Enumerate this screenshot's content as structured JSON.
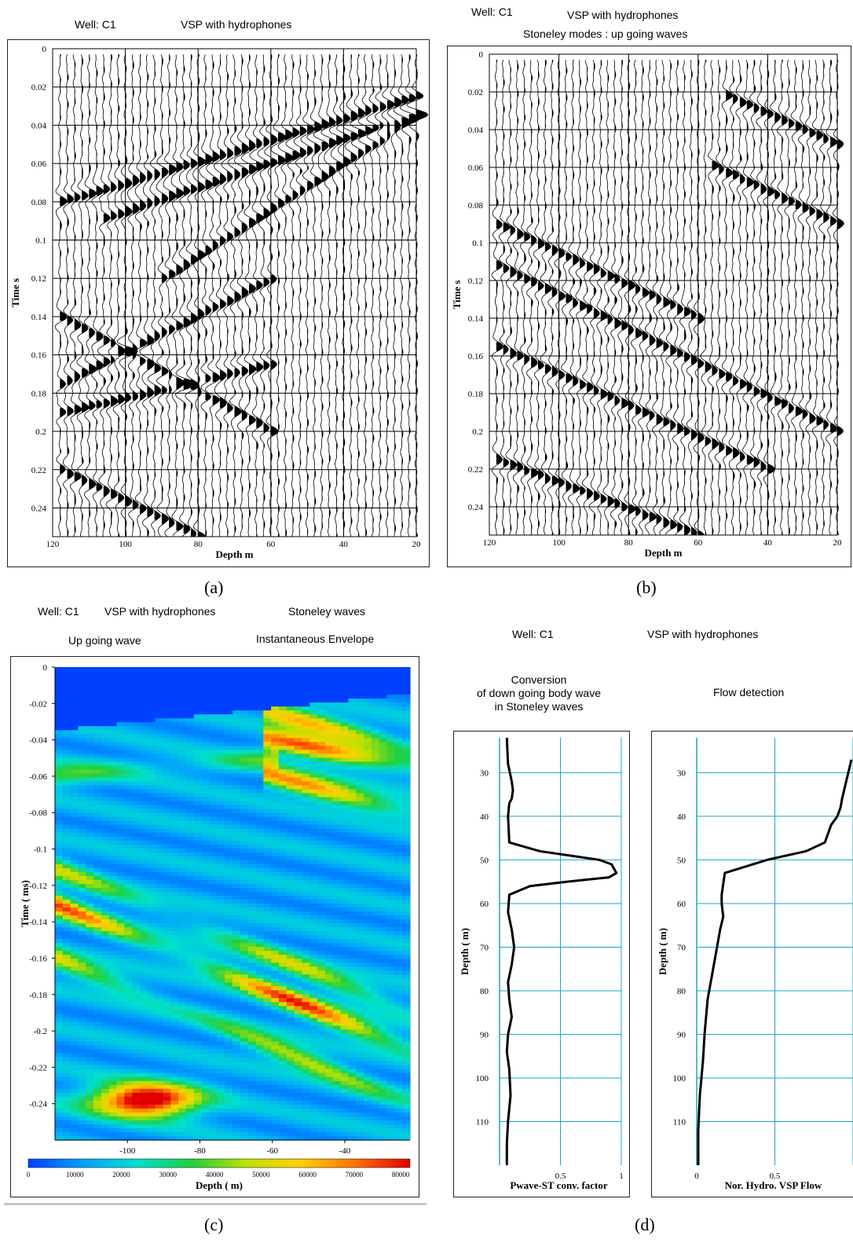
{
  "panels": {
    "a": {
      "header": {
        "well": "Well: C1",
        "title": "VSP with hydrophones"
      },
      "caption": "(a)"
    },
    "b": {
      "header": {
        "well": "Well: C1",
        "title": "VSP with hydrophones",
        "subtitle": "Stoneley modes : up going waves"
      },
      "caption": "(b)"
    },
    "c": {
      "header": {
        "well": "Well: C1",
        "title": "VSP with hydrophones",
        "title2": "Stoneley waves",
        "subtitle": "Up going wave",
        "subtitle2": "Instantaneous Envelope"
      },
      "caption": "(c)"
    },
    "d": {
      "header": {
        "well": "Well: C1",
        "title": "VSP with hydrophones",
        "left_title_l1": "Conversion",
        "left_title_l2": "of down going body wave",
        "left_title_l3": "in Stoneley waves",
        "right_title": "Flow detection"
      },
      "caption": "(d)"
    }
  },
  "chart_data": [
    {
      "id": "a",
      "type": "line",
      "subtype": "seismic wiggle traces",
      "xlabel": "Depth m",
      "ylabel": "Time s",
      "x_ticks": [
        "120",
        "100",
        "80",
        "60",
        "40",
        "20"
      ],
      "y_ticks": [
        "0",
        "0.02",
        "0.04",
        "0.06",
        "0.08",
        "0.1",
        "0.12",
        "0.14",
        "0.16",
        "0.18",
        "0.2",
        "0.22",
        "0.24"
      ],
      "xlim": [
        120,
        20
      ],
      "ylim": [
        0,
        0.255
      ],
      "trace_depths": [
        118,
        116,
        114,
        112,
        110,
        108,
        106,
        104,
        102,
        100,
        98,
        96,
        94,
        92,
        90,
        88,
        86,
        84,
        82,
        80,
        78,
        76,
        74,
        72,
        70,
        68,
        66,
        64,
        62,
        60,
        58,
        56,
        54,
        52,
        50,
        48,
        46,
        44,
        42,
        40,
        38,
        36,
        34,
        32,
        30,
        28,
        26,
        24,
        22,
        20
      ],
      "events": [
        {
          "depths": [
            118,
            20
          ],
          "times": [
            0.08,
            0.025
          ]
        },
        {
          "depths": [
            105,
            20
          ],
          "times": [
            0.088,
            0.034
          ]
        },
        {
          "depths": [
            90,
            20
          ],
          "times": [
            0.12,
            0.035
          ]
        },
        {
          "depths": [
            118,
            60
          ],
          "times": [
            0.19,
            0.165
          ]
        },
        {
          "depths": [
            118,
            60
          ],
          "times": [
            0.175,
            0.12
          ]
        },
        {
          "depths": [
            118,
            80
          ],
          "times": [
            0.22,
            0.255
          ]
        },
        {
          "depths": [
            118,
            60
          ],
          "times": [
            0.14,
            0.2
          ]
        }
      ],
      "grid": true
    },
    {
      "id": "b",
      "type": "line",
      "subtype": "seismic wiggle traces",
      "xlabel": "Depth m",
      "ylabel": "Time s",
      "x_ticks": [
        "120",
        "100",
        "80",
        "60",
        "40",
        "20"
      ],
      "y_ticks": [
        "0",
        "0.02",
        "0.04",
        "0.06",
        "0.08",
        "0.1",
        "0.12",
        "0.14",
        "0.16",
        "0.18",
        "0.2",
        "0.22",
        "0.24"
      ],
      "xlim": [
        120,
        20
      ],
      "ylim": [
        0,
        0.255
      ],
      "trace_depths": [
        118,
        116,
        114,
        112,
        110,
        108,
        106,
        104,
        102,
        100,
        98,
        96,
        94,
        92,
        90,
        88,
        86,
        84,
        82,
        80,
        78,
        76,
        74,
        72,
        70,
        68,
        66,
        64,
        62,
        60,
        58,
        56,
        54,
        52,
        50,
        48,
        46,
        44,
        42,
        40,
        38,
        36,
        34,
        32,
        30,
        28,
        26,
        24,
        22,
        20
      ],
      "events": [
        {
          "depths": [
            52,
            20
          ],
          "times": [
            0.022,
            0.048
          ]
        },
        {
          "depths": [
            55,
            20
          ],
          "times": [
            0.06,
            0.09
          ]
        },
        {
          "depths": [
            120,
            20
          ],
          "times": [
            0.11,
            0.2
          ]
        },
        {
          "depths": [
            118,
            40
          ],
          "times": [
            0.155,
            0.22
          ]
        },
        {
          "depths": [
            118,
            60
          ],
          "times": [
            0.215,
            0.255
          ]
        },
        {
          "depths": [
            118,
            60
          ],
          "times": [
            0.09,
            0.14
          ]
        }
      ],
      "grid": true
    },
    {
      "id": "c",
      "type": "heatmap",
      "xlabel": "Depth ( m)",
      "ylabel": "Time ( ms)",
      "x_ticks": [
        "-100",
        "-80",
        "-60",
        "-40"
      ],
      "y_ticks": [
        "0",
        "-0.02",
        "-0.04",
        "-0.06",
        "-0.08",
        "-0.1",
        "-0.12",
        "-0.14",
        "-0.16",
        "-0.18",
        "-0.2",
        "-0.22",
        "-0.24"
      ],
      "xlim": [
        -120,
        -22
      ],
      "ylim": [
        -0.26,
        0
      ],
      "colorbar": {
        "ticks": [
          "0",
          "10000",
          "20000",
          "30000",
          "40000",
          "50000",
          "60000",
          "70000",
          "80000"
        ],
        "range": [
          0,
          82000
        ],
        "colors": [
          "#0040ff",
          "#00a0ff",
          "#00e0d0",
          "#20d040",
          "#c0e000",
          "#ffd000",
          "#ff7000",
          "#e00000"
        ]
      },
      "bands": [
        {
          "depths": [
            -120,
            -22
          ],
          "times": [
            -0.11,
            -0.19
          ],
          "peak": 34000
        },
        {
          "depths": [
            -120,
            -22
          ],
          "times": [
            -0.13,
            -0.21
          ],
          "peak": 62000
        },
        {
          "depths": [
            -120,
            -22
          ],
          "times": [
            -0.16,
            -0.24
          ],
          "peak": 38000
        },
        {
          "depths": [
            -60,
            -22
          ],
          "times": [
            -0.025,
            -0.045
          ],
          "peak": 52000
        },
        {
          "depths": [
            -60,
            -22
          ],
          "times": [
            -0.04,
            -0.055
          ],
          "peak": 62000
        },
        {
          "depths": [
            -60,
            -22
          ],
          "times": [
            -0.06,
            -0.08
          ],
          "peak": 56000
        },
        {
          "depths": [
            -120,
            -60
          ],
          "times": [
            -0.06,
            -0.05
          ],
          "peak": 26000
        }
      ],
      "hot_spot": {
        "depth": -95,
        "time": -0.238,
        "peak": 82000
      },
      "grid": false
    },
    {
      "id": "d1",
      "type": "line",
      "xlabel": "Pwave-ST conv. factor",
      "ylabel": "Depth ( m)",
      "x_ticks": [
        "0.5",
        "1"
      ],
      "y_ticks": [
        "30",
        "40",
        "50",
        "60",
        "70",
        "80",
        "90",
        "100",
        "110"
      ],
      "xlim": [
        0,
        1
      ],
      "ylim": [
        22,
        120
      ],
      "x": [
        0.06,
        0.07,
        0.1,
        0.11,
        0.1,
        0.08,
        0.07,
        0.08,
        0.33,
        0.82,
        0.92,
        0.96,
        0.9,
        0.55,
        0.25,
        0.08,
        0.07,
        0.1,
        0.12,
        0.1,
        0.07,
        0.08,
        0.1,
        0.07,
        0.06,
        0.08,
        0.09,
        0.07,
        0.06,
        0.06
      ],
      "y": [
        22,
        28,
        32,
        34,
        36,
        37,
        40,
        46,
        48,
        50,
        51,
        53,
        54,
        55,
        56,
        58,
        62,
        66,
        70,
        74,
        78,
        82,
        86,
        90,
        94,
        98,
        104,
        110,
        115,
        120
      ],
      "grid": true
    },
    {
      "id": "d2",
      "type": "line",
      "xlabel": "Nor. Hydro. VSP Flow",
      "ylabel": "Depth ( m)",
      "x_ticks": [
        "0",
        "0.5"
      ],
      "y_ticks": [
        "30",
        "40",
        "50",
        "60",
        "70",
        "80",
        "90",
        "100",
        "110"
      ],
      "xlim": [
        0,
        1
      ],
      "ylim": [
        22,
        120
      ],
      "x": [
        0.99,
        0.97,
        0.95,
        0.93,
        0.92,
        0.9,
        0.86,
        0.84,
        0.82,
        0.7,
        0.45,
        0.18,
        0.16,
        0.16,
        0.17,
        0.15,
        0.13,
        0.1,
        0.07,
        0.05,
        0.04,
        0.02,
        0.01,
        0.01
      ],
      "y": [
        27,
        30,
        33,
        36,
        38,
        40,
        42,
        44,
        46,
        48,
        50,
        53,
        58,
        60,
        63,
        66,
        70,
        76,
        82,
        90,
        96,
        104,
        112,
        120
      ],
      "grid": true
    }
  ]
}
